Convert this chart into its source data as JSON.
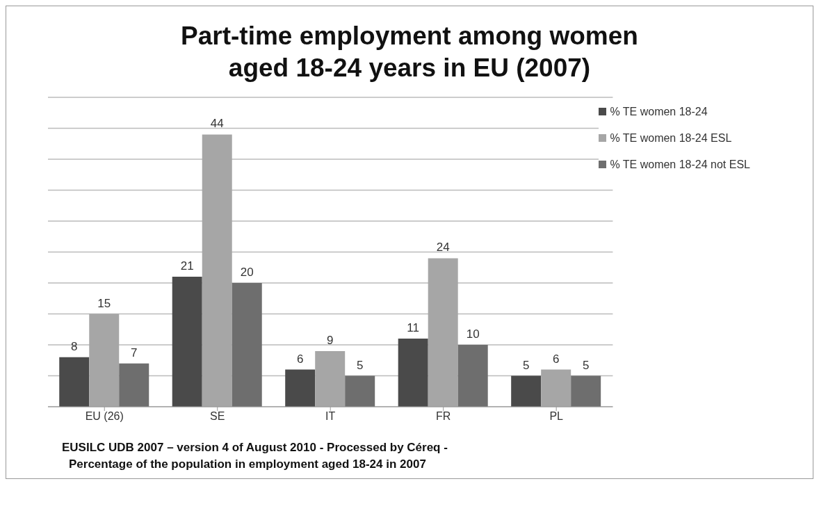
{
  "chart_data": {
    "type": "bar",
    "title": "Part-time employment among women aged 18-24 years in EU (2007)",
    "categories": [
      "EU (26)",
      "SE",
      "IT",
      "FR",
      "PL"
    ],
    "series": [
      {
        "name": "% TE women 18-24",
        "color": "#4a4a4a",
        "values": [
          8,
          21,
          6,
          11,
          5
        ]
      },
      {
        "name": "% TE women 18-24 ESL",
        "color": "#a6a6a6",
        "values": [
          15,
          44,
          9,
          24,
          6
        ]
      },
      {
        "name": "% TE women 18-24 not ESL",
        "color": "#6e6e6e",
        "values": [
          7,
          20,
          5,
          10,
          5
        ]
      }
    ],
    "tick_labels": "x",
    "grid": "y",
    "legend": "top right",
    "data_labels": true,
    "annotations": [
      "EUSILC UDB 2007 – version 4 of August 2010 - Processed by Céreq -",
      "Percentage of the population  in employment aged 18-24 in 2007"
    ]
  }
}
